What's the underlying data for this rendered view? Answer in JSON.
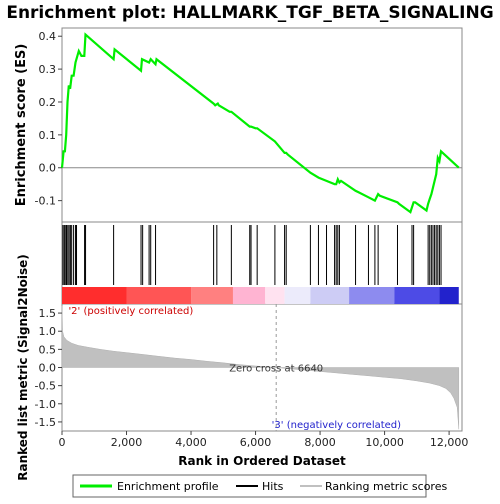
{
  "chart_data": {
    "type": "line",
    "title": "Enrichment plot: HALLMARK_TGF_BETA_SIGNALING",
    "top_panel": {
      "ylabel": "Enrichment score (ES)",
      "yticks": [
        0.4,
        0.3,
        0.2,
        0.1,
        0.0,
        -0.1
      ],
      "ylim": [
        -0.165,
        0.425
      ],
      "series_name": "Enrichment profile",
      "series_color": "#00ee00",
      "x": [
        0,
        50,
        90,
        130,
        170,
        210,
        250,
        300,
        360,
        420,
        520,
        600,
        690,
        730,
        1600,
        1630,
        2450,
        2480,
        2700,
        2750,
        2900,
        2930,
        4700,
        4750,
        4830,
        4860,
        5200,
        5250,
        5820,
        5860,
        6000,
        6050,
        6600,
        6900,
        6950,
        7000,
        7700,
        7950,
        8200,
        8450,
        8500,
        8550,
        8600,
        8650,
        9100,
        9200,
        9500,
        9700,
        9800,
        9850,
        10400,
        10450,
        10800,
        10850,
        10900,
        10950,
        11300,
        11350,
        11400,
        11450,
        11500,
        11550,
        11600,
        11650,
        11700,
        11750,
        12300
      ],
      "y": [
        0.0,
        0.05,
        0.05,
        0.1,
        0.2,
        0.25,
        0.24,
        0.28,
        0.28,
        0.32,
        0.355,
        0.34,
        0.34,
        0.405,
        0.33,
        0.36,
        0.295,
        0.33,
        0.32,
        0.33,
        0.315,
        0.33,
        0.195,
        0.19,
        0.195,
        0.19,
        0.17,
        0.17,
        0.125,
        0.125,
        0.12,
        0.12,
        0.08,
        0.045,
        0.045,
        0.04,
        -0.015,
        -0.03,
        -0.04,
        -0.05,
        -0.05,
        -0.035,
        -0.045,
        -0.04,
        -0.07,
        -0.075,
        -0.09,
        -0.1,
        -0.08,
        -0.085,
        -0.105,
        -0.11,
        -0.135,
        -0.12,
        -0.105,
        -0.105,
        -0.13,
        -0.11,
        -0.095,
        -0.08,
        -0.06,
        -0.04,
        -0.02,
        0.03,
        0.02,
        0.05,
        0.0
      ]
    },
    "hits": [
      30,
      70,
      100,
      140,
      180,
      220,
      260,
      300,
      360,
      420,
      450,
      700,
      730,
      1600,
      2450,
      2500,
      2700,
      2750,
      2900,
      4700,
      4800,
      5250,
      5820,
      5860,
      6050,
      6600,
      6900,
      6950,
      7700,
      7950,
      8200,
      8450,
      8500,
      8550,
      8600,
      9100,
      9500,
      9700,
      9800,
      10400,
      10850,
      10900,
      11350,
      11400,
      11450,
      11500,
      11550,
      11600,
      11650,
      11700,
      11750
    ],
    "bottom_panel": {
      "ylabel": "Ranked list metric (Signal2Noise)",
      "xlabel": "Rank in Ordered Dataset",
      "yticks": [
        1.5,
        1.0,
        0.5,
        0.0,
        -0.5,
        -1.0,
        -1.5
      ],
      "ylim": [
        -1.75,
        1.75
      ],
      "metric_x": [
        0,
        20,
        60,
        150,
        300,
        500,
        800,
        1200,
        1600,
        2000,
        2500,
        3000,
        3500,
        4000,
        4500,
        5000,
        5500,
        6000,
        6500,
        6640,
        7000,
        7500,
        8000,
        8500,
        9000,
        9500,
        10000,
        10500,
        11000,
        11400,
        11700,
        11900,
        12050,
        12150,
        12250,
        12300
      ],
      "metric_y": [
        1.7,
        1.0,
        0.85,
        0.75,
        0.67,
        0.61,
        0.56,
        0.5,
        0.45,
        0.41,
        0.36,
        0.31,
        0.26,
        0.22,
        0.17,
        0.13,
        0.08,
        0.04,
        0.01,
        0.0,
        -0.03,
        -0.07,
        -0.11,
        -0.15,
        -0.19,
        -0.23,
        -0.27,
        -0.31,
        -0.37,
        -0.43,
        -0.5,
        -0.58,
        -0.7,
        -0.85,
        -1.1,
        -1.7
      ],
      "zero_cross_label": "Zero cross at 6640",
      "zero_cross": 6640,
      "pos_label": "'2' (positively correlated)",
      "neg_label": "'3' (negatively correlated)"
    },
    "xlim": [
      0,
      12400
    ],
    "xticks": [
      0,
      2000,
      4000,
      6000,
      8000,
      10000,
      12000
    ],
    "xtick_labels": [
      "0",
      "2,000",
      "4,000",
      "6,000",
      "8,000",
      "10,000",
      "12,000"
    ],
    "colorbar_segments": [
      {
        "from": 0,
        "to": 2000,
        "color": "#ff2d2d"
      },
      {
        "from": 2000,
        "to": 4000,
        "color": "#ff5555"
      },
      {
        "from": 4000,
        "to": 5300,
        "color": "#ff8080"
      },
      {
        "from": 5300,
        "to": 6300,
        "color": "#ffb4d2"
      },
      {
        "from": 6300,
        "to": 6900,
        "color": "#ffe2f0"
      },
      {
        "from": 6900,
        "to": 7700,
        "color": "#ecebfb"
      },
      {
        "from": 7700,
        "to": 8900,
        "color": "#cdccf5"
      },
      {
        "from": 8900,
        "to": 10300,
        "color": "#8d8bef"
      },
      {
        "from": 10300,
        "to": 11700,
        "color": "#4d4be6"
      },
      {
        "from": 11700,
        "to": 12300,
        "color": "#2222cc"
      }
    ],
    "legend": [
      {
        "label": "Enrichment profile",
        "color": "#00ee00"
      },
      {
        "label": "Hits",
        "color": "#000000"
      },
      {
        "label": "Ranking metric scores",
        "color": "#c0c0c0"
      }
    ]
  }
}
